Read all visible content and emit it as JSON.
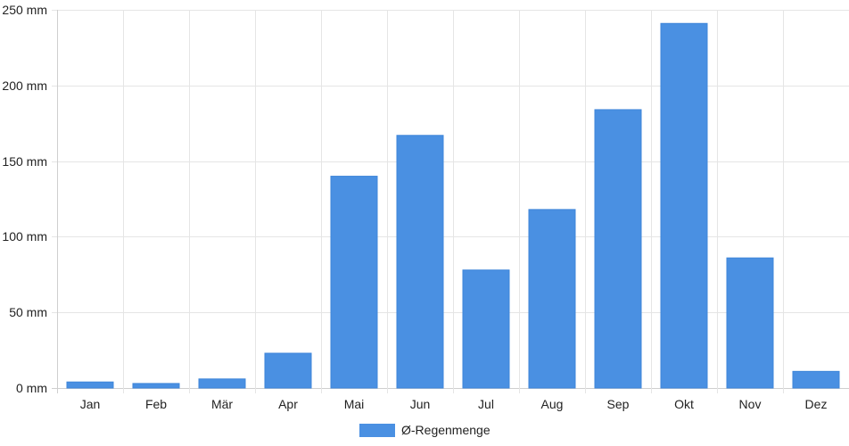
{
  "chart_data": {
    "type": "bar",
    "categories": [
      "Jan",
      "Feb",
      "Mär",
      "Apr",
      "Mai",
      "Jun",
      "Jul",
      "Aug",
      "Sep",
      "Okt",
      "Nov",
      "Dez"
    ],
    "series": [
      {
        "name": "Ø-Regenmenge",
        "values": [
          4,
          3,
          6,
          23,
          140,
          167,
          78,
          118,
          184,
          241,
          86,
          11
        ],
        "color": "#4a90e2"
      }
    ],
    "ylim": [
      0,
      250
    ],
    "yticks": [
      {
        "value": 0,
        "label": "0 mm"
      },
      {
        "value": 50,
        "label": "50 mm"
      },
      {
        "value": 100,
        "label": "100 mm"
      },
      {
        "value": 150,
        "label": "150 mm"
      },
      {
        "value": 200,
        "label": "200 mm"
      },
      {
        "value": 250,
        "label": "250 mm"
      }
    ],
    "title": "",
    "xlabel": "",
    "ylabel": "",
    "grid": true,
    "legend_position": "bottom-center"
  }
}
